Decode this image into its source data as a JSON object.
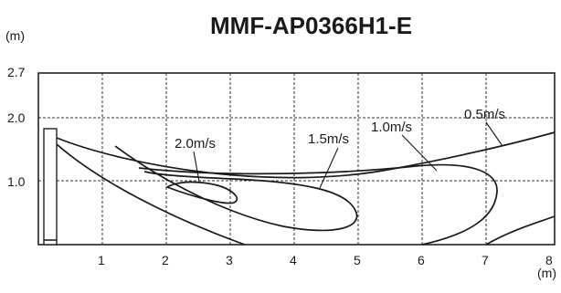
{
  "title": "MMF-AP0366H1-E",
  "y_unit": "(m)",
  "x_unit": "(m)",
  "y_ticks": [
    {
      "value": 2.7,
      "label": "2.7"
    },
    {
      "value": 2.0,
      "label": "2.0"
    },
    {
      "value": 1.0,
      "label": "1.0"
    }
  ],
  "x_ticks": [
    {
      "value": 1,
      "label": "1"
    },
    {
      "value": 2,
      "label": "2"
    },
    {
      "value": 3,
      "label": "3"
    },
    {
      "value": 4,
      "label": "4"
    },
    {
      "value": 5,
      "label": "5"
    },
    {
      "value": 6,
      "label": "6"
    },
    {
      "value": 7,
      "label": "7"
    },
    {
      "value": 8,
      "label": "8"
    }
  ],
  "velocity_labels": {
    "v20": "2.0m/s",
    "v15": "1.5m/s",
    "v10": "1.0m/s",
    "v05": "0.5m/s"
  }
}
